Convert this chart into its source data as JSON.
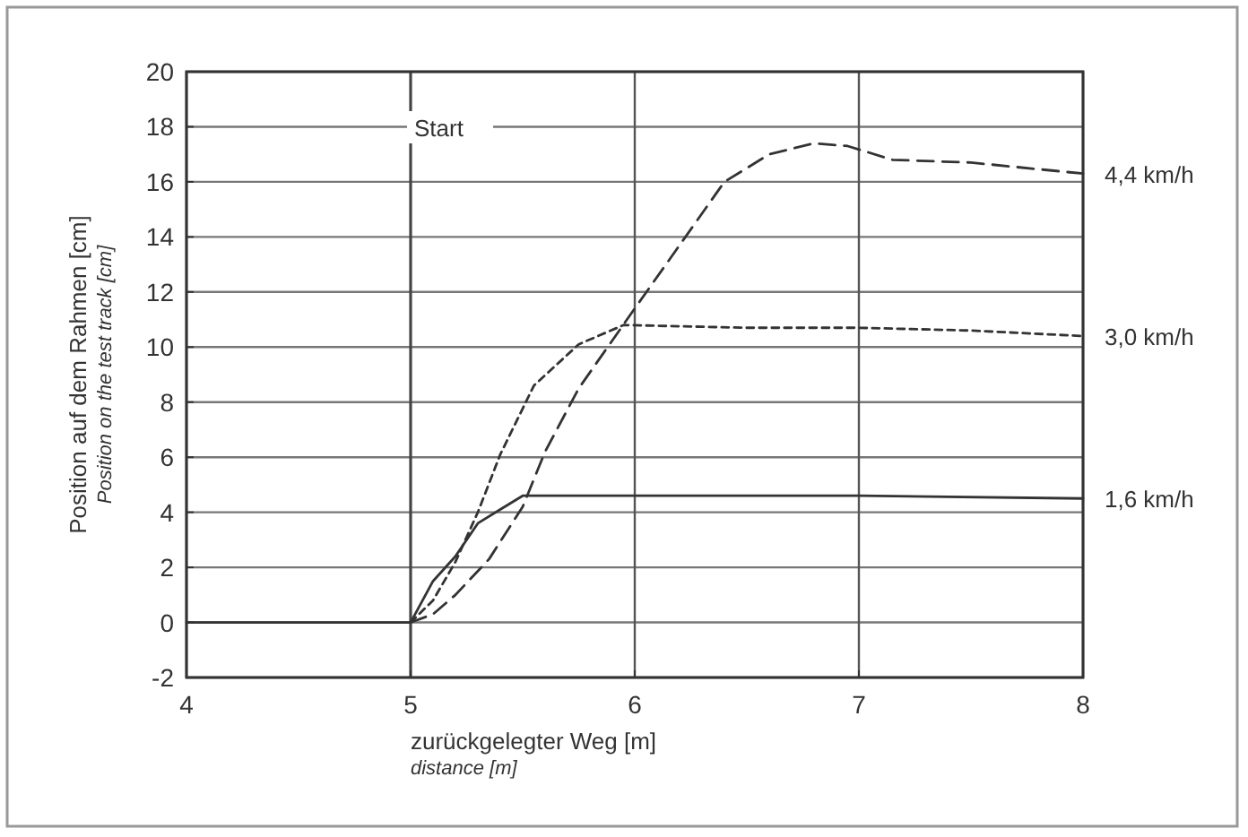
{
  "chart_data": {
    "type": "line",
    "xlabel": "zurückgelegter Weg [m]\ndistance [m]",
    "ylabel": "Position auf dem Rahmen [cm]\nPosition on the test track [cm]",
    "xlim": [
      4,
      8
    ],
    "xticks": [
      4,
      5,
      6,
      7,
      8
    ],
    "ylim": [
      -2,
      20
    ],
    "yticks": [
      -2,
      0,
      2,
      4,
      6,
      8,
      10,
      12,
      14,
      16,
      18,
      20
    ],
    "grid": true,
    "ref_lines": [
      {
        "axis": "x",
        "value": 5,
        "label": "Start"
      }
    ],
    "series": [
      {
        "name": "1,6 km/h",
        "color": "#333333",
        "line_style": "solid",
        "x": [
          4,
          5,
          5.1,
          5.2,
          5.3,
          5.4,
          5.5,
          6,
          7,
          8
        ],
        "values": [
          0,
          0,
          1.5,
          2.4,
          3.6,
          4.1,
          4.6,
          4.6,
          4.6,
          4.5
        ]
      },
      {
        "name": "3,0 km/h",
        "color": "#333333",
        "line_style": "dotted",
        "x": [
          5,
          5.1,
          5.2,
          5.3,
          5.4,
          5.55,
          5.75,
          5.95,
          6.5,
          7,
          7.5,
          8
        ],
        "values": [
          0,
          0.8,
          2.2,
          4,
          6.1,
          8.6,
          10.1,
          10.8,
          10.7,
          10.7,
          10.6,
          10.4
        ]
      },
      {
        "name": "4,4 km/h",
        "color": "#333333",
        "line_style": "dashed",
        "x": [
          5,
          5.1,
          5.2,
          5.35,
          5.5,
          5.6,
          5.75,
          6,
          6.2,
          6.4,
          6.6,
          6.8,
          6.95,
          7.15,
          7.5,
          8
        ],
        "values": [
          0,
          0.3,
          1,
          2.3,
          4.2,
          6.2,
          8.5,
          11.4,
          13.7,
          16,
          17,
          17.4,
          17.3,
          16.8,
          16.7,
          16.3
        ]
      }
    ]
  }
}
